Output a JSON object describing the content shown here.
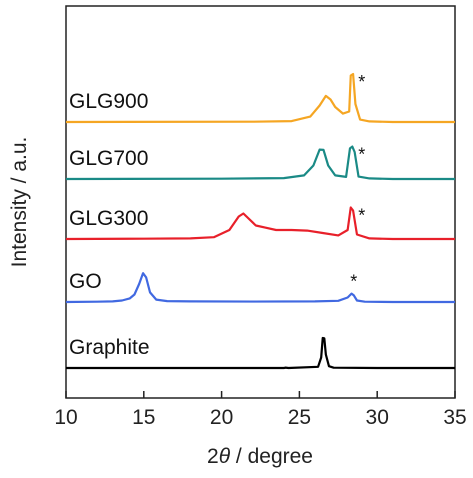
{
  "chart_data": {
    "type": "line",
    "title": "",
    "xlabel_prefix": "2",
    "xlabel_symbol": "θ",
    "xlabel_suffix": " / degree",
    "ylabel": "Intensity / a.u.",
    "xlim": [
      10,
      35
    ],
    "xticks": [
      10,
      15,
      20,
      25,
      30,
      35
    ],
    "xtick_labels": [
      "10",
      "15",
      "20",
      "25",
      "30",
      "35"
    ],
    "y_units": "arbitrary (stacked, offset traces)",
    "grid": false,
    "legend": "none (series labels placed above traces)",
    "annotation_text": "*",
    "series": [
      {
        "name": "Graphite",
        "color": "#000000",
        "offset": 0,
        "points": [
          [
            10,
            0
          ],
          [
            24,
            0
          ],
          [
            24.1,
            0.012
          ],
          [
            24.3,
            0
          ],
          [
            26.2,
            0.04
          ],
          [
            26.4,
            0.35
          ],
          [
            26.5,
            1.0
          ],
          [
            26.6,
            0.99
          ],
          [
            26.7,
            0.45
          ],
          [
            26.9,
            0.06
          ],
          [
            27.2,
            0.01
          ],
          [
            30,
            0
          ],
          [
            35,
            0
          ]
        ],
        "annotated_peaks": []
      },
      {
        "name": "GO",
        "color": "#4169E1",
        "offset": 2.2,
        "points": [
          [
            10,
            0
          ],
          [
            12,
            0.01
          ],
          [
            13,
            0.02
          ],
          [
            13.6,
            0.05
          ],
          [
            14.1,
            0.12
          ],
          [
            14.4,
            0.25
          ],
          [
            14.7,
            0.6
          ],
          [
            14.95,
            0.96
          ],
          [
            15.15,
            0.82
          ],
          [
            15.4,
            0.32
          ],
          [
            15.8,
            0.08
          ],
          [
            16.5,
            0.03
          ],
          [
            18,
            0.02
          ],
          [
            22,
            0.015
          ],
          [
            26,
            0.02
          ],
          [
            27.5,
            0.04
          ],
          [
            28.1,
            0.15
          ],
          [
            28.35,
            0.28
          ],
          [
            28.5,
            0.22
          ],
          [
            28.7,
            0.05
          ],
          [
            29.2,
            0.01
          ],
          [
            31,
            0
          ],
          [
            35,
            0
          ]
        ],
        "annotated_peaks": [
          28.4
        ]
      },
      {
        "name": "GLG300",
        "color": "#E8202A",
        "offset": 4.3,
        "points": [
          [
            10,
            0
          ],
          [
            15,
            0.01
          ],
          [
            18,
            0.02
          ],
          [
            19.5,
            0.06
          ],
          [
            20.5,
            0.3
          ],
          [
            21.1,
            0.75
          ],
          [
            21.4,
            0.85
          ],
          [
            21.7,
            0.7
          ],
          [
            22.2,
            0.45
          ],
          [
            22.8,
            0.38
          ],
          [
            23.5,
            0.3
          ],
          [
            24.5,
            0.3
          ],
          [
            25.5,
            0.28
          ],
          [
            26.5,
            0.2
          ],
          [
            27.5,
            0.12
          ],
          [
            28.1,
            0.3
          ],
          [
            28.3,
            1.05
          ],
          [
            28.45,
            0.95
          ],
          [
            28.7,
            0.15
          ],
          [
            29.5,
            0.02
          ],
          [
            31,
            0
          ],
          [
            35,
            0
          ]
        ],
        "annotated_peaks": [
          28.4
        ]
      },
      {
        "name": "GLG700",
        "color": "#1A8A86",
        "offset": 6.3,
        "points": [
          [
            10,
            0
          ],
          [
            20,
            0.01
          ],
          [
            24,
            0.03
          ],
          [
            25.3,
            0.12
          ],
          [
            25.9,
            0.45
          ],
          [
            26.3,
            0.98
          ],
          [
            26.55,
            0.97
          ],
          [
            26.85,
            0.45
          ],
          [
            27.3,
            0.12
          ],
          [
            28,
            0.07
          ],
          [
            28.25,
            1.02
          ],
          [
            28.4,
            1.08
          ],
          [
            28.55,
            0.9
          ],
          [
            28.8,
            0.08
          ],
          [
            29.5,
            0.02
          ],
          [
            31,
            0
          ],
          [
            35,
            0
          ]
        ],
        "annotated_peaks": [
          28.4
        ]
      },
      {
        "name": "GLG900",
        "color": "#F5A623",
        "offset": 8.2,
        "points": [
          [
            10,
            0
          ],
          [
            22,
            0.01
          ],
          [
            24.5,
            0.03
          ],
          [
            25.7,
            0.18
          ],
          [
            26.3,
            0.55
          ],
          [
            26.7,
            0.87
          ],
          [
            27.0,
            0.75
          ],
          [
            27.3,
            0.5
          ],
          [
            27.8,
            0.28
          ],
          [
            28.2,
            0.35
          ],
          [
            28.3,
            1.55
          ],
          [
            28.45,
            1.6
          ],
          [
            28.6,
            0.6
          ],
          [
            28.9,
            0.08
          ],
          [
            29.5,
            0.02
          ],
          [
            31,
            0
          ],
          [
            35,
            0
          ]
        ],
        "annotated_peaks": [
          28.4
        ]
      }
    ]
  }
}
